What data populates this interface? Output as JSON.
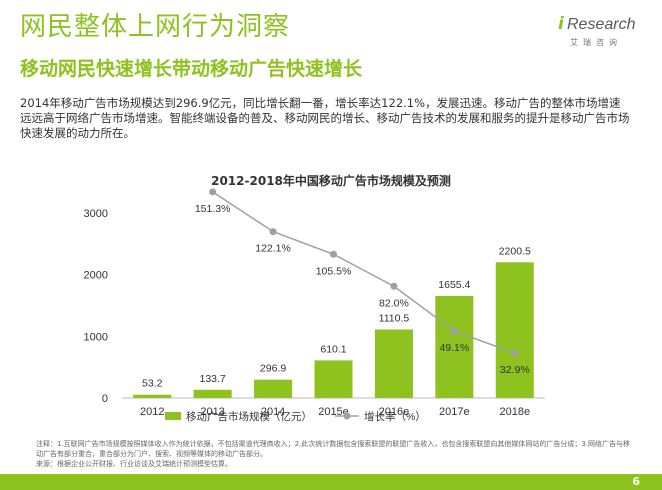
{
  "slide": {
    "title": "网民整体上网行为洞察",
    "subtitle": "移动网民快速增长带动移动广告快速增长",
    "summary": "2014年移动广告市场规模达到296.9亿元，同比增长翻一番，增长率达122.1%，发展迅速。移动广告的整体市场增速远远高于网络广告市场增速。智能终端设备的普及、移动网民的增长、移动广告技术的发展和服务的提升是移动广告市场快速发展的动力所在。",
    "footnote_1": "注释：1.互联网广告市场规模按照媒体收入作为统计依据，不包括渠道代理商收入；2.此次统计数据包含搜索联盟的联盟广告收入，也包含搜索联盟向其他媒体网站的广告分成；3.网络广告与移动广告有部分重合，重合部分为门户、搜索、视频等媒体的移动广告部分。",
    "footnote_2": "来源：根据企业公开财报、行业访谈及艾瑞统计预测模型估算。",
    "page_number": "6"
  },
  "logo": {
    "i": "i",
    "wordmark": "Research",
    "cn": "艾瑞咨询"
  },
  "colors": {
    "brand_green": "#8dc21f",
    "bar": "#8dc21f",
    "line": "#a0a0a0",
    "marker": "#a0a0a0"
  },
  "chart_data": {
    "type": "bar",
    "title": "2012-2018年中国移动广告市场规模及预测",
    "categories": [
      "2012",
      "2013",
      "2014",
      "2015e",
      "2016e",
      "2017e",
      "2018e"
    ],
    "series": [
      {
        "name": "移动广告市场规模（亿元）",
        "type": "bar",
        "values": [
          53.2,
          133.7,
          296.9,
          610.1,
          1110.5,
          1655.4,
          2200.5
        ],
        "labels": [
          "53.2",
          "133.7",
          "296.9",
          "610.1",
          "1110.5",
          "1655.4",
          "2200.5"
        ]
      },
      {
        "name": "增长率（%）",
        "type": "line",
        "values": [
          null,
          151.3,
          122.1,
          105.5,
          82.0,
          49.1,
          32.9
        ],
        "labels": [
          "",
          "151.3%",
          "122.1%",
          "105.5%",
          "82.0%",
          "49.1%",
          "32.9%"
        ]
      }
    ],
    "yticks": [
      "0",
      "1000",
      "2000",
      "3000"
    ],
    "ylim": [
      0,
      3000
    ],
    "y2lim": [
      0,
      160
    ],
    "grid": false,
    "legend_position": "bottom"
  }
}
